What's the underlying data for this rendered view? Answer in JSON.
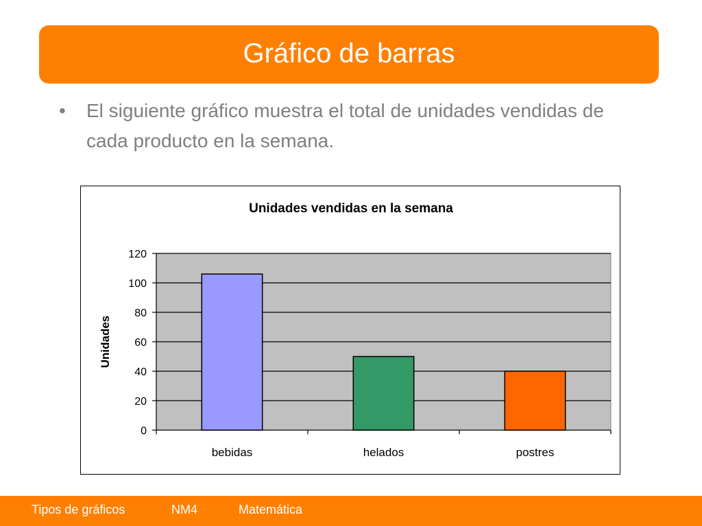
{
  "slide": {
    "title": "Gráfico de barras",
    "bullet_symbol": "•",
    "bullet_text": "El siguiente gráfico muestra el total de unidades vendidas de cada producto en la semana."
  },
  "footer": {
    "item1": "Tipos de gráficos",
    "item2": "NM4",
    "item3": "Matemática"
  },
  "colors": {
    "accent": "#ff8000",
    "plot_bg": "#c0c0c0"
  },
  "chart_data": {
    "type": "bar",
    "title": "Unidades vendidas en la semana",
    "xlabel": "",
    "ylabel": "Unidades",
    "categories": [
      "bebidas",
      "helados",
      "postres"
    ],
    "values": [
      106,
      50,
      40
    ],
    "colors": [
      "#9999ff",
      "#339966",
      "#ff6600"
    ],
    "ylim": [
      0,
      120
    ],
    "yticks": [
      0,
      20,
      40,
      60,
      80,
      100,
      120
    ],
    "grid": true
  }
}
